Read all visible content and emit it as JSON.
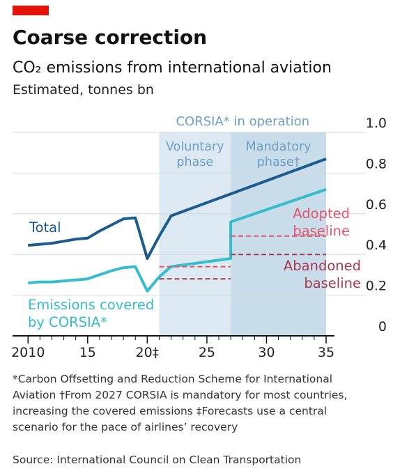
{
  "chart_data": {
    "type": "line",
    "title": "Coarse correction",
    "subtitle": "CO₂ emissions from international aviation",
    "y_label": "Estimated, tonnes bn",
    "header": "CORSIA* in operation",
    "regions": [
      {
        "label": [
          "Voluntary",
          "phase"
        ],
        "from": 2021,
        "to": 2027,
        "color": "#dde9f2"
      },
      {
        "label": [
          "Mandatory",
          "phase†"
        ],
        "from": 2027,
        "to": 2035,
        "color": "#c8dcea"
      }
    ],
    "xlim": [
      2008.7,
      2035.7
    ],
    "xticks": [
      2010,
      {
        "value": 2015,
        "label": "15"
      },
      {
        "value": 2020,
        "label": "20‡"
      },
      {
        "value": 2025,
        "label": "25"
      },
      {
        "value": 2030,
        "label": "30"
      },
      {
        "value": 2035,
        "label": "35"
      }
    ],
    "xticks_minor": [
      2011,
      2012,
      2013,
      2014,
      2016,
      2017,
      2018,
      2019,
      2021,
      2022,
      2023,
      2024,
      2026,
      2027,
      2028,
      2029,
      2031,
      2032,
      2033,
      2034
    ],
    "ylim": [
      0,
      1.0
    ],
    "yticks": [
      0,
      0.2,
      0.4,
      0.6,
      0.8,
      {
        "value": 1.0,
        "label": "1.0"
      }
    ],
    "grid": true,
    "series": [
      {
        "name": [
          "Total"
        ],
        "color": "#1c5b8f",
        "dashed": false,
        "x": [
          2010,
          2011,
          2012,
          2013,
          2014,
          2015,
          2016,
          2017,
          2018,
          2019,
          2020,
          2021,
          2022,
          2035
        ],
        "values": [
          0.445,
          0.45,
          0.455,
          0.465,
          0.475,
          0.48,
          0.515,
          0.545,
          0.575,
          0.58,
          0.38,
          0.49,
          0.59,
          0.87
        ]
      },
      {
        "name": [
          "Emissions covered",
          "by CORSIA*"
        ],
        "color": "#35bccd",
        "dashed": false,
        "x": [
          2010,
          2011,
          2012,
          2013,
          2014,
          2015,
          2016,
          2017,
          2018,
          2019,
          2020,
          2021,
          2022,
          2027,
          2027,
          2035
        ],
        "values": [
          0.26,
          0.265,
          0.265,
          0.27,
          0.275,
          0.28,
          0.3,
          0.32,
          0.335,
          0.34,
          0.22,
          0.29,
          0.34,
          0.38,
          0.56,
          0.72
        ]
      },
      {
        "name": [
          "Adopted",
          "baseline"
        ],
        "color": "#e4566b",
        "dashed": true,
        "x": [
          2021,
          2027,
          2027,
          2027,
          2035
        ],
        "values": [
          0.34,
          0.34,
          null,
          0.49,
          0.49
        ]
      },
      {
        "name": [
          "Abandoned",
          "baseline"
        ],
        "color": "#a53a4d",
        "dashed": true,
        "x": [
          2021,
          2027,
          2027,
          2027,
          2035
        ],
        "values": [
          0.28,
          0.28,
          null,
          0.4,
          0.4
        ]
      }
    ],
    "footnotes": [
      "*Carbon Offsetting and Reduction Scheme for International",
      "Aviation   †From 2027 CORSIA is mandatory for most countries,",
      "increasing the covered emissions   ‡Forecasts use a central",
      "scenario for the pace of airlines’ recovery"
    ],
    "source": "Source: International Council on Clean Transportation"
  }
}
